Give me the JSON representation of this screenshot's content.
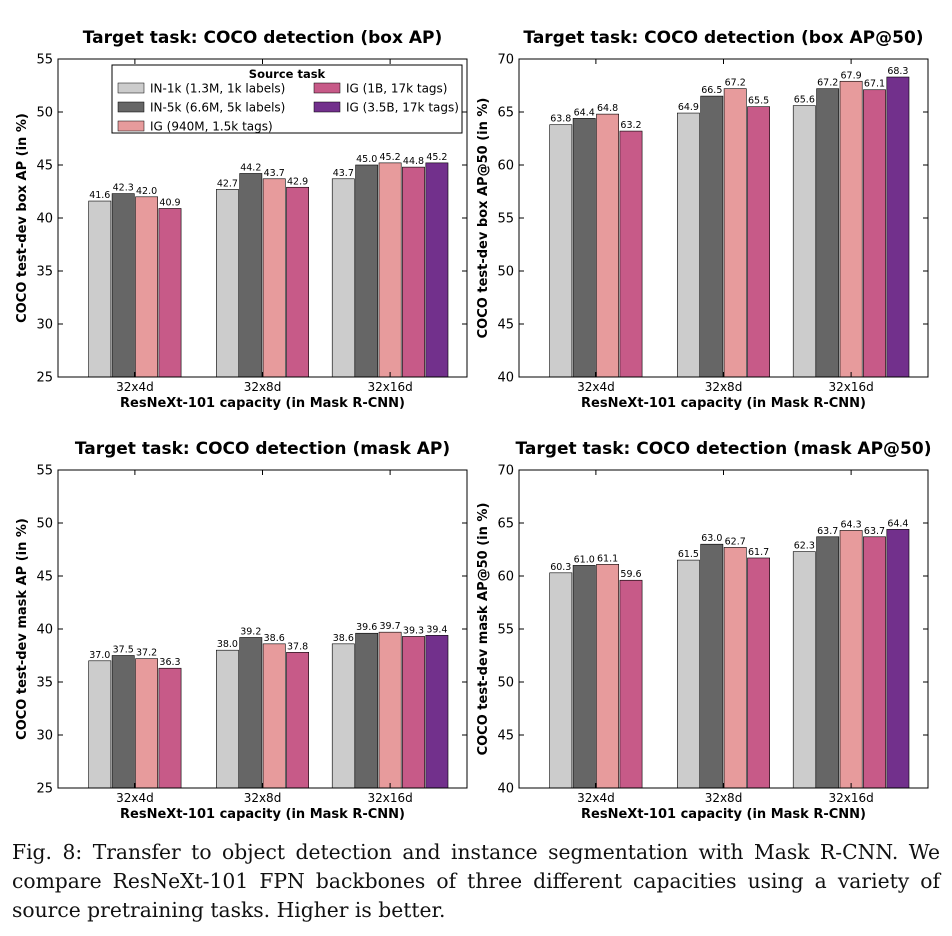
{
  "figure": {
    "caption": "Fig. 8: Transfer to object detection and instance segmentation with Mask R-CNN. We compare ResNeXt-101 FPN backbones of three different capacities using a variety of source pretraining tasks. Higher is better."
  },
  "legend": {
    "title": "Source task",
    "entries": [
      {
        "name": "IN-1k (1.3M, 1k labels)",
        "color": "#cccccc"
      },
      {
        "name": "IN-5k (6.6M, 5k labels)",
        "color": "#666666"
      },
      {
        "name": "IG (940M, 1.5k tags)",
        "color": "#e79b9c"
      },
      {
        "name": "IG (1B, 17k tags)",
        "color": "#c75a88"
      },
      {
        "name": "IG (3.5B, 17k tags)",
        "color": "#72308c"
      }
    ]
  },
  "chart_data": [
    {
      "type": "bar",
      "title": "Target task: COCO detection (box AP)",
      "xlabel": "ResNeXt-101 capacity (in Mask R-CNN)",
      "ylabel": "COCO test-dev box AP (in %)",
      "ylim": [
        25,
        55
      ],
      "yticks": [
        25,
        30,
        35,
        40,
        45,
        50,
        55
      ],
      "legend": "top-center",
      "categories": [
        "32x4d",
        "32x8d",
        "32x16d"
      ],
      "series": [
        {
          "name": "IN-1k (1.3M, 1k labels)",
          "values": [
            41.6,
            42.7,
            43.7
          ]
        },
        {
          "name": "IN-5k (6.6M, 5k labels)",
          "values": [
            42.3,
            44.2,
            45.0
          ]
        },
        {
          "name": "IG (940M, 1.5k tags)",
          "values": [
            42.0,
            43.7,
            45.2
          ]
        },
        {
          "name": "IG (1B, 17k tags)",
          "values": [
            40.9,
            42.9,
            44.8
          ]
        },
        {
          "name": "IG (3.5B, 17k tags)",
          "values": [
            null,
            null,
            45.2
          ]
        }
      ]
    },
    {
      "type": "bar",
      "title": "Target task: COCO detection (box AP@50)",
      "xlabel": "ResNeXt-101 capacity (in Mask R-CNN)",
      "ylabel": "COCO test-dev box AP@50 (in %)",
      "ylim": [
        40,
        70
      ],
      "yticks": [
        40,
        45,
        50,
        55,
        60,
        65,
        70
      ],
      "categories": [
        "32x4d",
        "32x8d",
        "32x16d"
      ],
      "series": [
        {
          "name": "IN-1k (1.3M, 1k labels)",
          "values": [
            63.8,
            64.9,
            65.6
          ]
        },
        {
          "name": "IN-5k (6.6M, 5k labels)",
          "values": [
            64.4,
            66.5,
            67.2
          ]
        },
        {
          "name": "IG (940M, 1.5k tags)",
          "values": [
            64.8,
            67.2,
            67.9
          ]
        },
        {
          "name": "IG (1B, 17k tags)",
          "values": [
            63.2,
            65.5,
            67.1
          ]
        },
        {
          "name": "IG (3.5B, 17k tags)",
          "values": [
            null,
            null,
            68.3
          ]
        }
      ]
    },
    {
      "type": "bar",
      "title": "Target task: COCO detection (mask AP)",
      "xlabel": "ResNeXt-101 capacity (in Mask R-CNN)",
      "ylabel": "COCO test-dev mask AP (in %)",
      "ylim": [
        25,
        55
      ],
      "yticks": [
        25,
        30,
        35,
        40,
        45,
        50,
        55
      ],
      "categories": [
        "32x4d",
        "32x8d",
        "32x16d"
      ],
      "series": [
        {
          "name": "IN-1k (1.3M, 1k labels)",
          "values": [
            37.0,
            38.0,
            38.6
          ]
        },
        {
          "name": "IN-5k (6.6M, 5k labels)",
          "values": [
            37.5,
            39.2,
            39.6
          ]
        },
        {
          "name": "IG (940M, 1.5k tags)",
          "values": [
            37.2,
            38.6,
            39.7
          ]
        },
        {
          "name": "IG (1B, 17k tags)",
          "values": [
            36.3,
            37.8,
            39.3
          ]
        },
        {
          "name": "IG (3.5B, 17k tags)",
          "values": [
            null,
            null,
            39.4
          ]
        }
      ]
    },
    {
      "type": "bar",
      "title": "Target task: COCO detection (mask AP@50)",
      "xlabel": "ResNeXt-101 capacity (in Mask R-CNN)",
      "ylabel": "COCO test-dev mask AP@50 (in %)",
      "ylim": [
        40,
        70
      ],
      "yticks": [
        40,
        45,
        50,
        55,
        60,
        65,
        70
      ],
      "categories": [
        "32x4d",
        "32x8d",
        "32x16d"
      ],
      "series": [
        {
          "name": "IN-1k (1.3M, 1k labels)",
          "values": [
            60.3,
            61.5,
            62.3
          ]
        },
        {
          "name": "IN-5k (6.6M, 5k labels)",
          "values": [
            61.0,
            63.0,
            63.7
          ]
        },
        {
          "name": "IG (940M, 1.5k tags)",
          "values": [
            61.1,
            62.7,
            64.3
          ]
        },
        {
          "name": "IG (1B, 17k tags)",
          "values": [
            59.6,
            61.7,
            63.7
          ]
        },
        {
          "name": "IG (3.5B, 17k tags)",
          "values": [
            null,
            null,
            64.4
          ]
        }
      ]
    }
  ]
}
